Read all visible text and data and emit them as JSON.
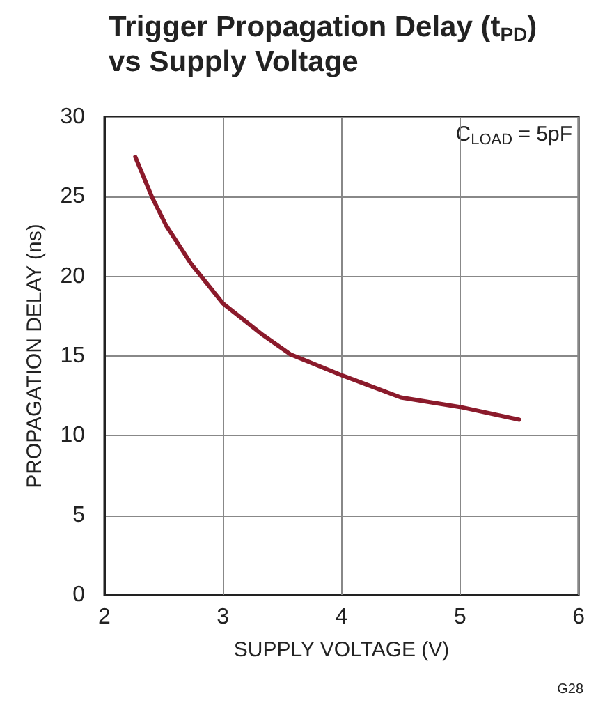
{
  "chart_data": {
    "type": "line",
    "title": "Trigger Propagation Delay (t$_{PD}$)\nvs Supply Voltage",
    "xlabel": "SUPPLY VOLTAGE (V)",
    "ylabel": "PROPAGATION DELAY (ns)",
    "annotations": [
      "C$_{LOAD}$ = 5pF",
      "G28"
    ],
    "x": [
      2.26,
      2.4,
      2.52,
      2.73,
      3.0,
      3.34,
      3.57,
      4.0,
      4.5,
      5.0,
      5.5
    ],
    "series": [
      {
        "color": "#8b1a2b",
        "values": [
          27.5,
          25.0,
          23.2,
          20.8,
          18.3,
          16.3,
          15.1,
          13.8,
          12.4,
          11.8,
          11.0
        ]
      }
    ],
    "xlim": [
      2,
      6
    ],
    "xticks": [
      2,
      3,
      4,
      5,
      6
    ],
    "ylim": [
      0,
      30
    ],
    "yticks": [
      0,
      5,
      10,
      15,
      20,
      25,
      30
    ],
    "grid": true,
    "marker": "none",
    "line_style": "solid"
  }
}
